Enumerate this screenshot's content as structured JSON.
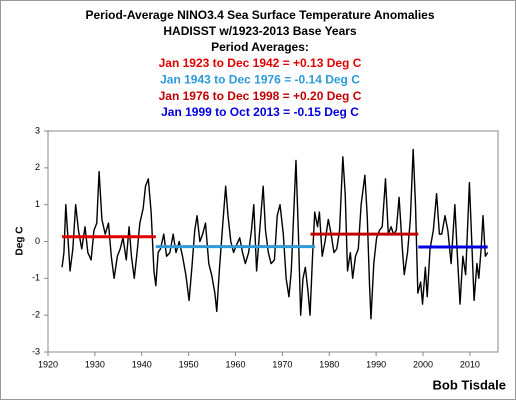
{
  "chart_data": {
    "type": "line",
    "title": "Period-Average NINO3.4 Sea Surface Temperature Anomalies",
    "subtitle": "HADISST w/1923-2013 Base Years",
    "annotation_header": "Period Averages:",
    "y_label": "Deg C",
    "credit": "Bob Tisdale",
    "xlim": [
      1920,
      2016
    ],
    "xticks": [
      1920,
      1930,
      1940,
      1950,
      1960,
      1970,
      1980,
      1990,
      2000,
      2010
    ],
    "ylim": [
      -3,
      3
    ],
    "yticks": [
      -3,
      -2,
      -1,
      0,
      1,
      2,
      3
    ],
    "color": "#000000",
    "x": [
      1923.0,
      1923.4,
      1923.8,
      1924.3,
      1924.7,
      1925.3,
      1925.9,
      1926.5,
      1927.2,
      1927.9,
      1928.5,
      1929.2,
      1929.8,
      1930.4,
      1930.9,
      1931.5,
      1932.2,
      1932.9,
      1933.5,
      1934.1,
      1934.8,
      1935.4,
      1936.0,
      1936.7,
      1937.3,
      1937.8,
      1938.4,
      1939.0,
      1939.6,
      1940.3,
      1940.8,
      1941.4,
      1942.0,
      1942.6,
      1943.0,
      1943.5,
      1944.0,
      1944.7,
      1945.3,
      1946.0,
      1946.7,
      1947.3,
      1948.0,
      1948.7,
      1949.4,
      1950.1,
      1950.7,
      1951.3,
      1951.8,
      1952.4,
      1953.0,
      1953.6,
      1954.3,
      1954.9,
      1955.6,
      1956.0,
      1956.6,
      1957.3,
      1957.9,
      1958.4,
      1959.0,
      1959.6,
      1960.2,
      1960.9,
      1961.5,
      1962.1,
      1962.8,
      1963.4,
      1963.9,
      1964.5,
      1965.1,
      1965.9,
      1966.4,
      1967.0,
      1967.6,
      1968.3,
      1968.9,
      1969.5,
      1970.2,
      1970.8,
      1971.4,
      1971.9,
      1972.5,
      1972.9,
      1973.4,
      1973.9,
      1974.4,
      1974.9,
      1975.5,
      1975.9,
      1976.4,
      1976.9,
      1977.5,
      1977.9,
      1978.5,
      1979.1,
      1979.8,
      1980.4,
      1981.0,
      1981.6,
      1982.2,
      1982.9,
      1983.4,
      1983.9,
      1984.5,
      1985.0,
      1985.6,
      1986.2,
      1986.8,
      1987.6,
      1988.1,
      1988.6,
      1988.9,
      1989.5,
      1990.1,
      1990.7,
      1991.3,
      1992.0,
      1992.6,
      1993.2,
      1993.7,
      1994.3,
      1994.9,
      1995.6,
      1996.0,
      1996.7,
      1997.3,
      1997.9,
      1998.4,
      1998.9,
      1999.5,
      1999.9,
      2000.5,
      2000.9,
      2001.5,
      2002.2,
      2002.9,
      2003.5,
      2004.0,
      2004.7,
      2005.3,
      2006.0,
      2006.8,
      2007.3,
      2007.9,
      2008.5,
      2009.1,
      2009.9,
      2010.4,
      2010.9,
      2011.5,
      2011.9,
      2012.4,
      2012.8,
      2013.3,
      2013.8
    ],
    "values": [
      -0.7,
      -0.3,
      1.0,
      0.0,
      -0.8,
      -0.2,
      1.0,
      0.3,
      -0.2,
      0.4,
      -0.3,
      -0.5,
      0.3,
      0.5,
      1.9,
      0.6,
      0.2,
      0.5,
      -0.4,
      -1.0,
      -0.4,
      -0.2,
      0.1,
      -0.5,
      0.4,
      -0.4,
      -1.0,
      -0.3,
      0.5,
      0.9,
      1.5,
      1.7,
      0.8,
      -0.8,
      -1.2,
      -0.3,
      -0.2,
      0.2,
      -0.4,
      -0.3,
      0.2,
      -0.3,
      0.0,
      -0.4,
      -0.9,
      -1.6,
      -0.7,
      0.3,
      0.7,
      0.0,
      0.2,
      0.5,
      -0.6,
      -0.9,
      -1.4,
      -1.9,
      -0.7,
      0.5,
      1.5,
      0.7,
      0.0,
      -0.3,
      -0.1,
      0.1,
      -0.3,
      -0.6,
      -0.3,
      0.3,
      1.0,
      -0.8,
      0.2,
      1.5,
      0.3,
      -0.3,
      -0.6,
      -0.5,
      0.7,
      1.0,
      0.2,
      -1.0,
      -1.5,
      -0.8,
      1.0,
      2.2,
      0.3,
      -2.0,
      -1.0,
      -0.7,
      -1.4,
      -2.0,
      -0.5,
      0.8,
      0.4,
      0.8,
      -0.4,
      0.0,
      0.6,
      0.2,
      -0.3,
      -0.2,
      0.3,
      2.3,
      1.3,
      -0.8,
      -0.3,
      -1.0,
      -0.4,
      -0.2,
      1.0,
      1.8,
      0.7,
      -1.2,
      -2.1,
      -0.6,
      0.1,
      0.3,
      0.4,
      1.7,
      0.2,
      0.4,
      0.2,
      0.3,
      1.2,
      -0.2,
      -0.9,
      -0.3,
      0.6,
      2.5,
      1.0,
      -1.4,
      -1.1,
      -1.7,
      -0.7,
      -1.5,
      -0.2,
      0.3,
      1.3,
      0.2,
      0.2,
      0.7,
      0.3,
      -0.6,
      1.0,
      -0.3,
      -1.7,
      -0.4,
      -0.9,
      1.6,
      0.0,
      -1.6,
      -0.6,
      -1.0,
      -0.2,
      0.7,
      -0.4,
      -0.3
    ],
    "periods": [
      {
        "label": "Jan 1923 to Dec 1942 = +0.13 Deg C",
        "color": "#e00000",
        "start": 1923.0,
        "end": 1943.0,
        "value": 0.13
      },
      {
        "label": "Jan 1943 to Dec 1976 = -0.14 Deg C",
        "color": "#2e9ad8",
        "start": 1943.0,
        "end": 1977.0,
        "value": -0.14
      },
      {
        "label": "Jan 1976 to Dec 1998 = +0.20 Deg C",
        "color": "#c00000",
        "start": 1976.0,
        "end": 1999.0,
        "value": 0.2
      },
      {
        "label": "Jan 1999 to Oct 2013 = -0.15 Deg C",
        "color": "#0000e0",
        "start": 1999.0,
        "end": 2013.8,
        "value": -0.15
      }
    ]
  }
}
